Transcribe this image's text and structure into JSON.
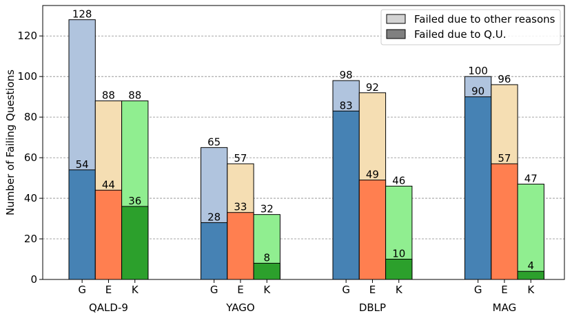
{
  "chart_data": {
    "type": "bar",
    "subtype": "stacked-grouped",
    "ylabel": "Number of Failing Questions",
    "ylim": [
      0,
      135
    ],
    "yticks": [
      0,
      20,
      40,
      60,
      80,
      100,
      120
    ],
    "grid": "horizontal-dashed",
    "legend_position": "top-right",
    "legend": [
      {
        "label": "Failed due to other reasons",
        "color": "#d3d3d3"
      },
      {
        "label": "Failed due to Q.U.",
        "color": "#808080"
      }
    ],
    "systems": [
      {
        "name": "G",
        "dark": "#4682b4",
        "light": "#b0c4de"
      },
      {
        "name": "E",
        "dark": "#ff7f50",
        "light": "#f5deb3"
      },
      {
        "name": "K",
        "dark": "#2ca02c",
        "light": "#90ee90"
      }
    ],
    "groups": [
      {
        "name": "QALD-9",
        "bars": [
          {
            "system": "G",
            "total": 128,
            "qu": 54
          },
          {
            "system": "E",
            "total": 88,
            "qu": 44
          },
          {
            "system": "K",
            "total": 88,
            "qu": 36
          }
        ]
      },
      {
        "name": "YAGO",
        "bars": [
          {
            "system": "G",
            "total": 65,
            "qu": 28
          },
          {
            "system": "E",
            "total": 57,
            "qu": 33
          },
          {
            "system": "K",
            "total": 32,
            "qu": 8
          }
        ]
      },
      {
        "name": "DBLP",
        "bars": [
          {
            "system": "G",
            "total": 98,
            "qu": 83
          },
          {
            "system": "E",
            "total": 92,
            "qu": 49
          },
          {
            "system": "K",
            "total": 46,
            "qu": 10
          }
        ]
      },
      {
        "name": "MAG",
        "bars": [
          {
            "system": "G",
            "total": 100,
            "qu": 90
          },
          {
            "system": "E",
            "total": 96,
            "qu": 57
          },
          {
            "system": "K",
            "total": 47,
            "qu": 4
          }
        ]
      }
    ]
  }
}
